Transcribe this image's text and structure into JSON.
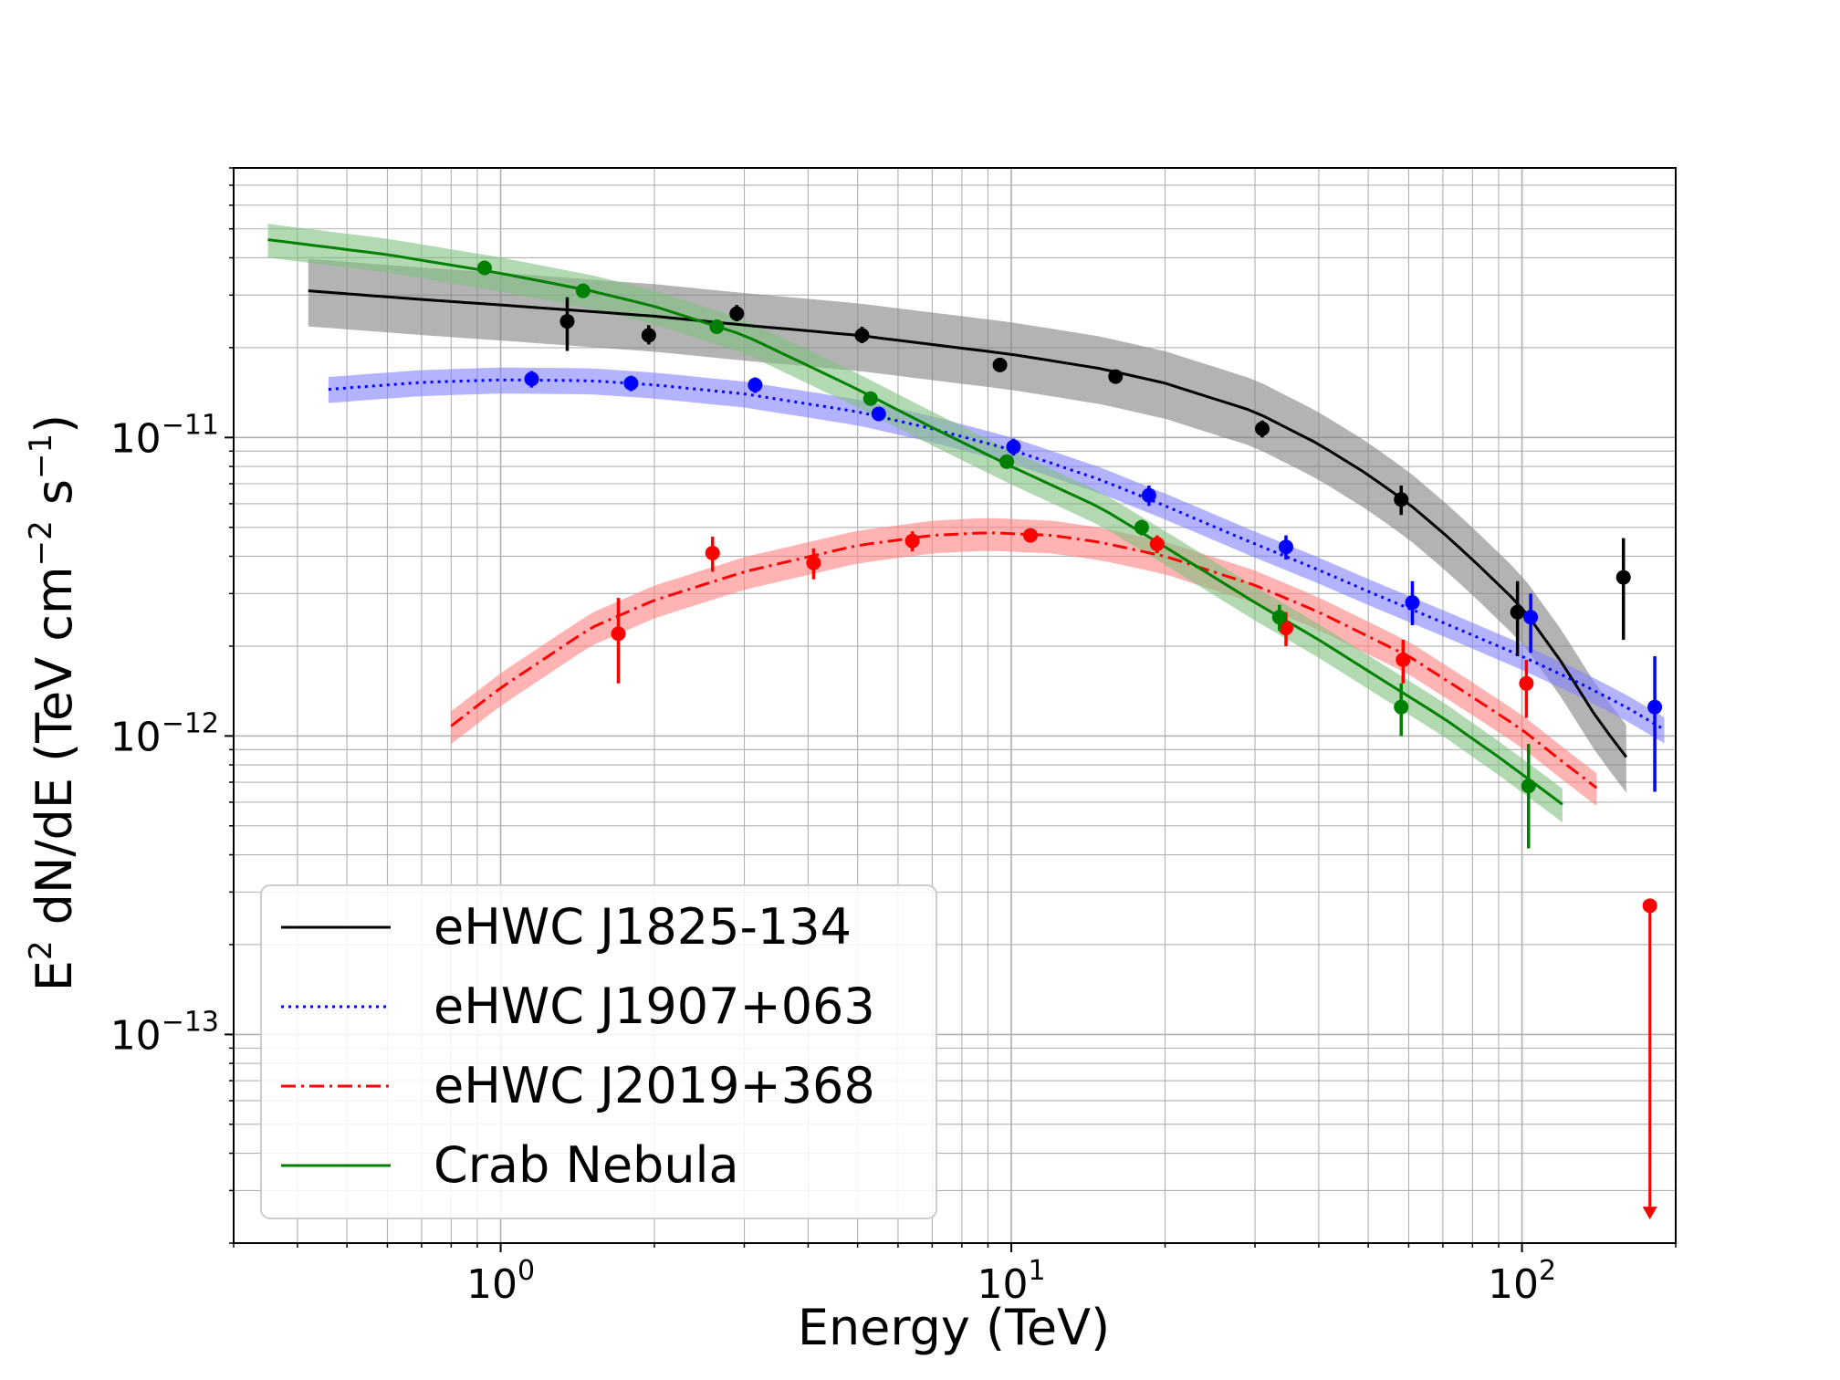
{
  "chart_data": {
    "type": "scatter",
    "xlabel": "Energy (TeV)",
    "ylabel": "E² dN/dE (TeV cm⁻² s⁻¹)",
    "ylabel_parts": {
      "a": "E",
      "a_sup": "2",
      "b": " dN/dE (TeV cm",
      "b_sup": "−2",
      "c": " s",
      "c_sup": "−1",
      "d": ")"
    },
    "xscale": "log",
    "yscale": "log",
    "xlim": [
      0.3,
      200
    ],
    "ylim": [
      2e-14,
      8e-11
    ],
    "grid": true,
    "legend_placement": "lower-left",
    "x_ticks": [
      {
        "value": 1,
        "base": "10",
        "exp": "0"
      },
      {
        "value": 10,
        "base": "10",
        "exp": "1"
      },
      {
        "value": 100,
        "base": "10",
        "exp": "2"
      }
    ],
    "y_ticks": [
      {
        "value": 1e-11,
        "base": "10",
        "exp": "−11"
      },
      {
        "value": 1e-12,
        "base": "10",
        "exp": "−12"
      },
      {
        "value": 1e-13,
        "base": "10",
        "exp": "−13"
      }
    ],
    "series": [
      {
        "name": "eHWC J1825-134",
        "color": "#000000",
        "line_style": "solid",
        "band_color": "#808080",
        "curve": [
          [
            0.42,
            3.1e-11
          ],
          [
            0.7,
            2.9e-11
          ],
          [
            1,
            2.78e-11
          ],
          [
            2,
            2.55e-11
          ],
          [
            3,
            2.38e-11
          ],
          [
            5,
            2.2e-11
          ],
          [
            10,
            1.9e-11
          ],
          [
            15,
            1.7e-11
          ],
          [
            20,
            1.52e-11
          ],
          [
            30,
            1.22e-11
          ],
          [
            40,
            9.5e-12
          ],
          [
            50,
            7.5e-12
          ],
          [
            60,
            6e-12
          ],
          [
            70,
            4.8e-12
          ],
          [
            80,
            3.9e-12
          ],
          [
            100,
            2.7e-12
          ],
          [
            120,
            1.75e-12
          ],
          [
            140,
            1.15e-12
          ],
          [
            160,
            8.5e-13
          ]
        ],
        "band_hi_factor": 1.28,
        "band_lo_factor": 0.76,
        "points": [
          {
            "x": 1.35,
            "y": 2.45e-11,
            "yerr_lo": 1.95e-11,
            "yerr_hi": 2.95e-11
          },
          {
            "x": 1.95,
            "y": 2.2e-11,
            "yerr_lo": 2.05e-11,
            "yerr_hi": 2.38e-11
          },
          {
            "x": 2.9,
            "y": 2.6e-11,
            "yerr_lo": 2.45e-11,
            "yerr_hi": 2.78e-11
          },
          {
            "x": 5.1,
            "y": 2.2e-11,
            "yerr_lo": 2.07e-11,
            "yerr_hi": 2.35e-11
          },
          {
            "x": 9.5,
            "y": 1.75e-11,
            "yerr_lo": 1.67e-11,
            "yerr_hi": 1.84e-11
          },
          {
            "x": 16,
            "y": 1.6e-11,
            "yerr_lo": 1.53e-11,
            "yerr_hi": 1.67e-11
          },
          {
            "x": 31,
            "y": 1.07e-11,
            "yerr_lo": 1e-11,
            "yerr_hi": 1.14e-11
          },
          {
            "x": 58,
            "y": 6.2e-12,
            "yerr_lo": 5.5e-12,
            "yerr_hi": 6.9e-12
          },
          {
            "x": 98,
            "y": 2.6e-12,
            "yerr_lo": 1.85e-12,
            "yerr_hi": 3.3e-12
          },
          {
            "x": 158,
            "y": 3.4e-12,
            "yerr_lo": 2.1e-12,
            "yerr_hi": 4.6e-12
          }
        ]
      },
      {
        "name": "eHWC J1907+063",
        "color": "#0000ff",
        "line_style": "dotted",
        "band_color": "#8080ff",
        "curve": [
          [
            0.46,
            1.45e-11
          ],
          [
            0.7,
            1.53e-11
          ],
          [
            1,
            1.56e-11
          ],
          [
            1.5,
            1.55e-11
          ],
          [
            2,
            1.5e-11
          ],
          [
            3,
            1.4e-11
          ],
          [
            5,
            1.22e-11
          ],
          [
            7,
            1.07e-11
          ],
          [
            10,
            9.1e-12
          ],
          [
            15,
            7.2e-12
          ],
          [
            20,
            5.9e-12
          ],
          [
            30,
            4.4e-12
          ],
          [
            40,
            3.6e-12
          ],
          [
            50,
            3.05e-12
          ],
          [
            70,
            2.4e-12
          ],
          [
            100,
            1.85e-12
          ],
          [
            130,
            1.5e-12
          ],
          [
            160,
            1.25e-12
          ],
          [
            190,
            1.05e-12
          ]
        ],
        "band_hi_factor": 1.1,
        "band_lo_factor": 0.9,
        "points": [
          {
            "x": 1.15,
            "y": 1.57e-11,
            "yerr_lo": 1.47e-11,
            "yerr_hi": 1.67e-11
          },
          {
            "x": 1.8,
            "y": 1.52e-11,
            "yerr_lo": 1.43e-11,
            "yerr_hi": 1.61e-11
          },
          {
            "x": 3.15,
            "y": 1.5e-11,
            "yerr_lo": 1.41e-11,
            "yerr_hi": 1.59e-11
          },
          {
            "x": 5.5,
            "y": 1.2e-11,
            "yerr_lo": 1.14e-11,
            "yerr_hi": 1.26e-11
          },
          {
            "x": 10.1,
            "y": 9.3e-12,
            "yerr_lo": 8.7e-12,
            "yerr_hi": 9.9e-12
          },
          {
            "x": 18.6,
            "y": 6.4e-12,
            "yerr_lo": 5.9e-12,
            "yerr_hi": 6.9e-12
          },
          {
            "x": 34.5,
            "y": 4.3e-12,
            "yerr_lo": 3.9e-12,
            "yerr_hi": 4.7e-12
          },
          {
            "x": 61,
            "y": 2.8e-12,
            "yerr_lo": 2.35e-12,
            "yerr_hi": 3.3e-12
          },
          {
            "x": 104,
            "y": 2.5e-12,
            "yerr_lo": 1.9e-12,
            "yerr_hi": 3e-12
          },
          {
            "x": 182,
            "y": 1.25e-12,
            "yerr_lo": 6.5e-13,
            "yerr_hi": 1.85e-12
          }
        ]
      },
      {
        "name": "eHWC J2019+368",
        "color": "#ff0000",
        "line_style": "dashdot",
        "band_color": "#ff8080",
        "curve": [
          [
            0.8,
            1.08e-12
          ],
          [
            1,
            1.45e-12
          ],
          [
            1.5,
            2.3e-12
          ],
          [
            2,
            2.85e-12
          ],
          [
            3,
            3.55e-12
          ],
          [
            5,
            4.35e-12
          ],
          [
            7,
            4.7e-12
          ],
          [
            9,
            4.8e-12
          ],
          [
            12,
            4.7e-12
          ],
          [
            15,
            4.45e-12
          ],
          [
            20,
            4e-12
          ],
          [
            30,
            3.2e-12
          ],
          [
            40,
            2.6e-12
          ],
          [
            60,
            1.85e-12
          ],
          [
            80,
            1.35e-12
          ],
          [
            100,
            1.05e-12
          ],
          [
            120,
            8.2e-13
          ],
          [
            140,
            6.7e-13
          ]
        ],
        "band_hi_factor": 1.12,
        "band_lo_factor": 0.87,
        "points": [
          {
            "x": 1.7,
            "y": 2.2e-12,
            "yerr_lo": 1.5e-12,
            "yerr_hi": 2.9e-12
          },
          {
            "x": 2.6,
            "y": 4.1e-12,
            "yerr_lo": 3.55e-12,
            "yerr_hi": 4.65e-12
          },
          {
            "x": 4.1,
            "y": 3.8e-12,
            "yerr_lo": 3.35e-12,
            "yerr_hi": 4.25e-12
          },
          {
            "x": 6.4,
            "y": 4.5e-12,
            "yerr_lo": 4.15e-12,
            "yerr_hi": 4.85e-12
          },
          {
            "x": 10.9,
            "y": 4.7e-12,
            "yerr_lo": 4.45e-12,
            "yerr_hi": 4.95e-12
          },
          {
            "x": 19.3,
            "y": 4.4e-12,
            "yerr_lo": 4.1e-12,
            "yerr_hi": 4.7e-12
          },
          {
            "x": 34.5,
            "y": 2.3e-12,
            "yerr_lo": 2e-12,
            "yerr_hi": 2.6e-12
          },
          {
            "x": 58.5,
            "y": 1.8e-12,
            "yerr_lo": 1.5e-12,
            "yerr_hi": 2.1e-12
          },
          {
            "x": 102,
            "y": 1.5e-12,
            "yerr_lo": 1.15e-12,
            "yerr_hi": 1.8e-12
          }
        ],
        "upper_limits": [
          {
            "x": 178,
            "y": 2.7e-13,
            "arrow_to": 2.4e-14
          }
        ]
      },
      {
        "name": "Crab Nebula",
        "color": "#008000",
        "line_style": "solid",
        "band_color": "#80c080",
        "curve": [
          [
            0.35,
            4.6e-11
          ],
          [
            0.6,
            4.1e-11
          ],
          [
            1,
            3.55e-11
          ],
          [
            1.5,
            3.1e-11
          ],
          [
            2,
            2.75e-11
          ],
          [
            3,
            2.2e-11
          ],
          [
            5,
            1.45e-11
          ],
          [
            7,
            1.08e-11
          ],
          [
            10,
            8e-12
          ],
          [
            15,
            5.8e-12
          ],
          [
            20,
            4.3e-12
          ],
          [
            30,
            2.8e-12
          ],
          [
            40,
            2.1e-12
          ],
          [
            50,
            1.65e-12
          ],
          [
            70,
            1.15e-12
          ],
          [
            90,
            8.5e-13
          ],
          [
            110,
            6.6e-13
          ],
          [
            120,
            5.9e-13
          ]
        ],
        "band_hi_factor": 1.13,
        "band_lo_factor": 0.87,
        "points": [
          {
            "x": 0.93,
            "y": 3.7e-11,
            "yerr_lo": 3.6e-11,
            "yerr_hi": 3.8e-11
          },
          {
            "x": 1.45,
            "y": 3.1e-11,
            "yerr_lo": 3.02e-11,
            "yerr_hi": 3.18e-11
          },
          {
            "x": 2.65,
            "y": 2.35e-11,
            "yerr_lo": 2.28e-11,
            "yerr_hi": 2.42e-11
          },
          {
            "x": 5.3,
            "y": 1.35e-11,
            "yerr_lo": 1.3e-11,
            "yerr_hi": 1.4e-11
          },
          {
            "x": 9.8,
            "y": 8.3e-12,
            "yerr_lo": 7.9e-12,
            "yerr_hi": 8.7e-12
          },
          {
            "x": 18,
            "y": 5e-12,
            "yerr_lo": 4.7e-12,
            "yerr_hi": 5.3e-12
          },
          {
            "x": 33.5,
            "y": 2.5e-12,
            "yerr_lo": 2.25e-12,
            "yerr_hi": 2.75e-12
          },
          {
            "x": 58,
            "y": 1.25e-12,
            "yerr_lo": 1e-12,
            "yerr_hi": 1.5e-12
          },
          {
            "x": 103,
            "y": 6.8e-13,
            "yerr_lo": 4.2e-13,
            "yerr_hi": 9.4e-13
          }
        ]
      }
    ]
  }
}
